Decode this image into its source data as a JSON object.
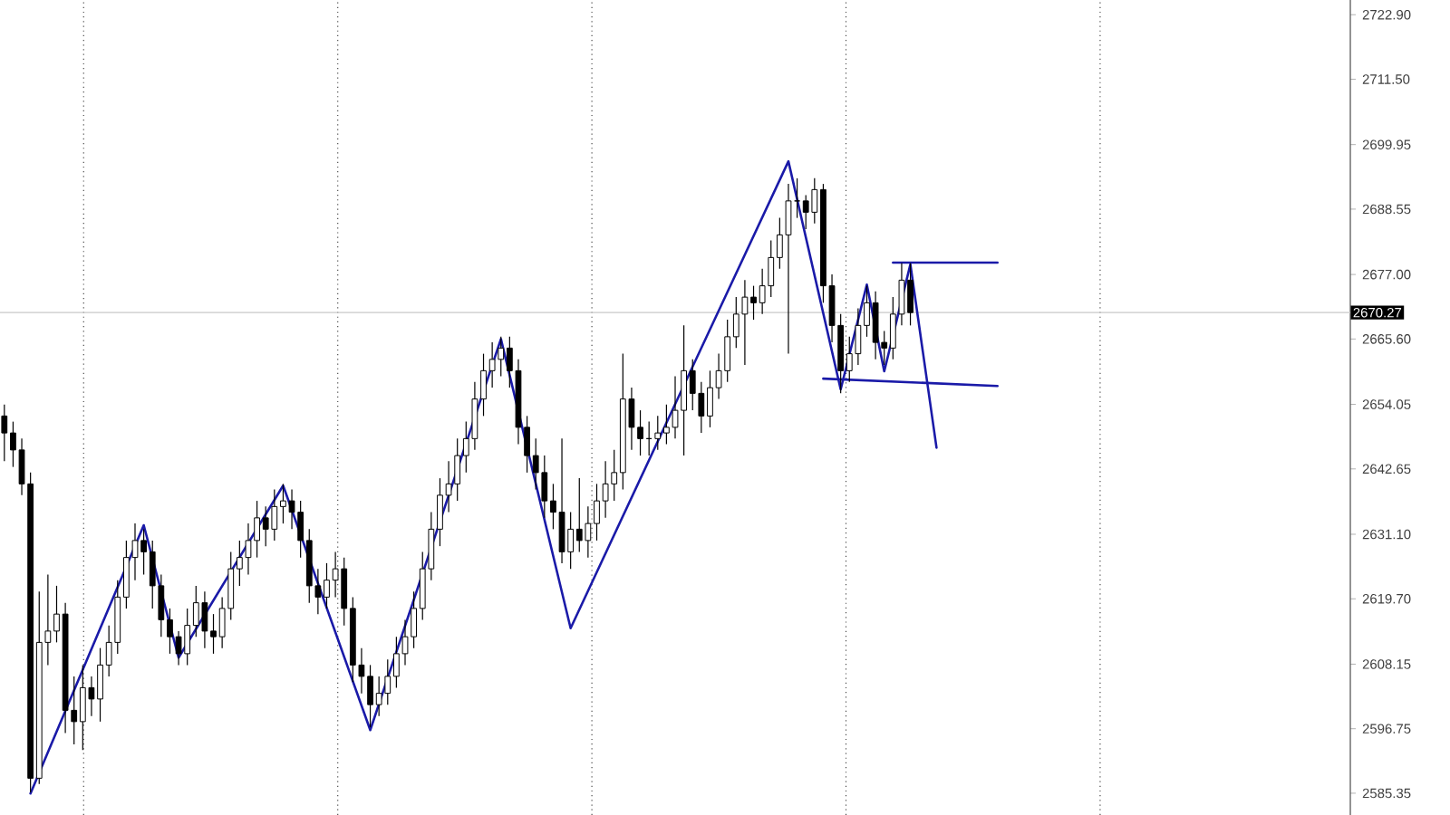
{
  "chart_data": {
    "type": "candlestick",
    "categories": [
      null,
      null,
      null,
      null,
      null,
      null,
      null,
      null,
      null,
      null,
      null,
      null,
      null,
      null,
      null,
      null,
      null,
      null,
      null,
      null,
      null,
      null,
      null,
      null,
      null,
      null,
      null,
      null,
      null,
      null,
      null,
      null,
      null,
      null,
      null,
      null,
      null,
      null,
      null,
      null,
      null,
      null,
      null,
      null,
      null,
      null,
      null,
      null,
      null,
      null,
      null,
      null,
      null,
      null,
      null,
      null,
      null,
      null,
      null,
      null,
      null,
      null,
      null,
      null,
      null,
      null,
      null,
      null,
      null,
      null,
      null,
      null,
      null,
      null,
      null,
      null,
      null,
      null,
      null,
      null,
      null,
      null,
      null,
      null,
      null,
      null,
      null,
      null,
      null,
      null,
      null,
      null,
      null,
      null,
      null,
      null,
      null,
      null,
      null,
      null,
      null,
      null,
      null,
      null,
      null,
      null,
      null,
      null,
      null,
      null,
      null,
      null,
      null,
      null,
      null,
      null,
      null,
      null,
      null,
      null,
      null,
      null,
      null,
      null,
      null,
      null,
      null,
      null,
      null,
      null,
      null,
      null,
      null,
      null,
      null,
      null,
      null,
      null,
      null,
      null,
      null,
      null,
      null,
      null,
      null,
      null,
      null,
      null,
      null,
      null,
      null,
      null,
      null,
      null,
      null
    ],
    "ohlc": [
      [
        2652,
        2654,
        2644,
        2649
      ],
      [
        2649,
        2651,
        2643,
        2646
      ],
      [
        2646,
        2648,
        2638,
        2640
      ],
      [
        2640,
        2642,
        2585.5,
        2588
      ],
      [
        2588,
        2621,
        2587,
        2612
      ],
      [
        2612,
        2624,
        2608,
        2614
      ],
      [
        2614,
        2622,
        2612,
        2617
      ],
      [
        2617,
        2619,
        2596,
        2600
      ],
      [
        2600,
        2606,
        2594,
        2598
      ],
      [
        2598,
        2608,
        2593,
        2604
      ],
      [
        2604,
        2606,
        2599,
        2602
      ],
      [
        2602,
        2611,
        2598,
        2608
      ],
      [
        2608,
        2615,
        2606,
        2612
      ],
      [
        2612,
        2623,
        2610,
        2620
      ],
      [
        2620,
        2630,
        2618,
        2627
      ],
      [
        2627,
        2633,
        2623,
        2630
      ],
      [
        2630,
        2632,
        2624,
        2628
      ],
      [
        2628,
        2630,
        2618,
        2622
      ],
      [
        2622,
        2624,
        2613,
        2616
      ],
      [
        2616,
        2618,
        2610,
        2613
      ],
      [
        2613,
        2614,
        2608,
        2610
      ],
      [
        2610,
        2618,
        2608,
        2615
      ],
      [
        2615,
        2622,
        2613,
        2619
      ],
      [
        2619,
        2621,
        2611,
        2614
      ],
      [
        2614,
        2617,
        2610,
        2613
      ],
      [
        2613,
        2620,
        2611,
        2618
      ],
      [
        2618,
        2628,
        2616,
        2625
      ],
      [
        2625,
        2630,
        2622,
        2627
      ],
      [
        2627,
        2633,
        2624,
        2630
      ],
      [
        2630,
        2637,
        2627,
        2634
      ],
      [
        2634,
        2636,
        2629,
        2632
      ],
      [
        2632,
        2639,
        2630,
        2636
      ],
      [
        2636,
        2640,
        2633,
        2637
      ],
      [
        2637,
        2639,
        2632,
        2635
      ],
      [
        2635,
        2637,
        2627,
        2630
      ],
      [
        2630,
        2632,
        2619,
        2622
      ],
      [
        2622,
        2625,
        2617,
        2620
      ],
      [
        2620,
        2626,
        2618,
        2623
      ],
      [
        2623,
        2628,
        2620,
        2625
      ],
      [
        2625,
        2627,
        2615,
        2618
      ],
      [
        2618,
        2620,
        2605,
        2608
      ],
      [
        2608,
        2611,
        2603,
        2606
      ],
      [
        2606,
        2608,
        2597,
        2601
      ],
      [
        2601,
        2606,
        2599,
        2603
      ],
      [
        2603,
        2609,
        2601,
        2606
      ],
      [
        2606,
        2613,
        2604,
        2610
      ],
      [
        2610,
        2616,
        2608,
        2613
      ],
      [
        2613,
        2621,
        2611,
        2618
      ],
      [
        2618,
        2628,
        2616,
        2625
      ],
      [
        2625,
        2635,
        2623,
        2632
      ],
      [
        2632,
        2641,
        2629,
        2638
      ],
      [
        2638,
        2644,
        2635,
        2640
      ],
      [
        2640,
        2648,
        2637,
        2645
      ],
      [
        2645,
        2651,
        2642,
        2648
      ],
      [
        2648,
        2658,
        2646,
        2655
      ],
      [
        2655,
        2663,
        2652,
        2660
      ],
      [
        2660,
        2665,
        2657,
        2662
      ],
      [
        2662,
        2666,
        2659,
        2664
      ],
      [
        2664,
        2666,
        2657,
        2660
      ],
      [
        2660,
        2662,
        2647,
        2650
      ],
      [
        2650,
        2652,
        2642,
        2645
      ],
      [
        2645,
        2648,
        2639,
        2642
      ],
      [
        2642,
        2645,
        2634,
        2637
      ],
      [
        2637,
        2640,
        2632,
        2635
      ],
      [
        2635,
        2648,
        2626,
        2628
      ],
      [
        2628,
        2635,
        2625,
        2632
      ],
      [
        2632,
        2641,
        2628,
        2630
      ],
      [
        2630,
        2636,
        2627,
        2633
      ],
      [
        2633,
        2640,
        2630,
        2637
      ],
      [
        2637,
        2644,
        2634,
        2640
      ],
      [
        2640,
        2646,
        2637,
        2642
      ],
      [
        2642,
        2663,
        2639,
        2655
      ],
      [
        2655,
        2657,
        2646,
        2650
      ],
      [
        2650,
        2653,
        2645,
        2648
      ],
      [
        2648,
        2651,
        2645,
        2648
      ],
      [
        2648,
        2652,
        2646,
        2649
      ],
      [
        2649,
        2654,
        2647,
        2650
      ],
      [
        2650,
        2659,
        2648,
        2653
      ],
      [
        2653,
        2668,
        2645,
        2660
      ],
      [
        2660,
        2662,
        2653,
        2656
      ],
      [
        2656,
        2658,
        2649,
        2652
      ],
      [
        2652,
        2660,
        2650,
        2657
      ],
      [
        2657,
        2663,
        2655,
        2660
      ],
      [
        2660,
        2669,
        2658,
        2666
      ],
      [
        2666,
        2673,
        2664,
        2670
      ],
      [
        2670,
        2676,
        2661,
        2673
      ],
      [
        2673,
        2675,
        2669,
        2672
      ],
      [
        2672,
        2678,
        2670,
        2675
      ],
      [
        2675,
        2683,
        2673,
        2680
      ],
      [
        2680,
        2687,
        2678,
        2684
      ],
      [
        2684,
        2693,
        2663,
        2690
      ],
      [
        2690,
        2694,
        2687,
        2690
      ],
      [
        2690,
        2691,
        2685,
        2688
      ],
      [
        2688,
        2694,
        2686,
        2692
      ],
      [
        2692,
        2693,
        2672,
        2675
      ],
      [
        2675,
        2677,
        2665,
        2668
      ],
      [
        2668,
        2670,
        2656,
        2660
      ],
      [
        2660,
        2666,
        2658,
        2663
      ],
      [
        2663,
        2671,
        2661,
        2668
      ],
      [
        2668,
        2675,
        2666,
        2672
      ],
      [
        2672,
        2674,
        2662,
        2665
      ],
      [
        2665,
        2667,
        2661,
        2664
      ],
      [
        2664,
        2673,
        2662,
        2670
      ],
      [
        2670,
        2679,
        2668,
        2676
      ],
      [
        2676,
        2679,
        2668,
        2670.27
      ],
      null,
      null,
      null,
      null,
      null,
      null,
      null,
      null,
      null,
      null,
      null,
      null,
      null,
      null,
      null,
      null,
      null,
      null,
      null,
      null,
      null,
      null,
      null,
      null,
      null,
      null,
      null,
      null,
      null,
      null,
      null,
      null,
      null,
      null,
      null,
      null,
      null,
      null,
      null,
      null,
      null,
      null,
      null,
      null,
      null,
      null,
      null,
      null,
      null,
      null
    ],
    "series": [
      {
        "type": "line",
        "color": "#1a1aa8",
        "values": [
          null,
          null,
          null,
          2585.3,
          null,
          null,
          null,
          null,
          null,
          null,
          null,
          null,
          null,
          null,
          null,
          null,
          2632.7,
          null,
          null,
          null,
          2609.3,
          null,
          null,
          null,
          null,
          null,
          null,
          null,
          null,
          null,
          null,
          null,
          2639.7,
          null,
          null,
          null,
          null,
          null,
          null,
          null,
          null,
          null,
          2596.5,
          null,
          null,
          null,
          null,
          null,
          null,
          null,
          null,
          null,
          null,
          null,
          null,
          null,
          null,
          2665.6,
          null,
          null,
          null,
          null,
          null,
          null,
          null,
          2614.5,
          null,
          null,
          null,
          null,
          null,
          null,
          null,
          null,
          null,
          null,
          null,
          null,
          null,
          null,
          null,
          null,
          null,
          null,
          null,
          null,
          null,
          null,
          null,
          null,
          2697,
          null,
          null,
          null,
          null,
          null,
          2656.7,
          null,
          null,
          2675.2,
          null,
          2659.9,
          null,
          null,
          2678.8,
          null,
          null,
          2646.4,
          null,
          null,
          null,
          null,
          null,
          null,
          null,
          null,
          null,
          null,
          null,
          null,
          null,
          null,
          null,
          null,
          null,
          null,
          null,
          null,
          null,
          null,
          null,
          null,
          null,
          null,
          null,
          null,
          null,
          null,
          null,
          null,
          null,
          null,
          null,
          null,
          null,
          null,
          null,
          null,
          null,
          null,
          null,
          null,
          null,
          null,
          null
        ]
      },
      {
        "type": "line",
        "color": "#1a1aa8",
        "values": [
          null,
          null,
          null,
          null,
          null,
          null,
          null,
          null,
          null,
          null,
          null,
          null,
          null,
          null,
          null,
          null,
          null,
          null,
          null,
          null,
          null,
          null,
          null,
          null,
          null,
          null,
          null,
          null,
          null,
          null,
          null,
          null,
          null,
          null,
          null,
          null,
          null,
          null,
          null,
          null,
          null,
          null,
          null,
          null,
          null,
          null,
          null,
          null,
          null,
          null,
          null,
          null,
          null,
          null,
          null,
          null,
          null,
          null,
          null,
          null,
          null,
          null,
          null,
          null,
          null,
          null,
          null,
          null,
          null,
          null,
          null,
          null,
          null,
          null,
          null,
          null,
          null,
          null,
          null,
          null,
          null,
          null,
          null,
          null,
          null,
          null,
          null,
          null,
          null,
          null,
          null,
          null,
          null,
          null,
          null,
          null,
          null,
          null,
          null,
          null,
          null,
          null,
          2679.1,
          null,
          null,
          null,
          null,
          null,
          null,
          null,
          null,
          null,
          null,
          null,
          2679.1,
          null,
          null,
          null,
          null,
          null,
          null,
          null,
          null,
          null,
          null,
          null,
          null,
          null,
          null,
          null,
          null,
          null,
          null,
          null,
          null,
          null,
          null,
          null,
          null,
          null,
          null,
          null,
          null,
          null,
          null,
          null,
          null,
          null,
          null,
          null,
          null,
          null,
          null,
          null,
          null
        ]
      },
      {
        "type": "line",
        "color": "#1a1aa8",
        "values": [
          null,
          null,
          null,
          null,
          null,
          null,
          null,
          null,
          null,
          null,
          null,
          null,
          null,
          null,
          null,
          null,
          null,
          null,
          null,
          null,
          null,
          null,
          null,
          null,
          null,
          null,
          null,
          null,
          null,
          null,
          null,
          null,
          null,
          null,
          null,
          null,
          null,
          null,
          null,
          null,
          null,
          null,
          null,
          null,
          null,
          null,
          null,
          null,
          null,
          null,
          null,
          null,
          null,
          null,
          null,
          null,
          null,
          null,
          null,
          null,
          null,
          null,
          null,
          null,
          null,
          null,
          null,
          null,
          null,
          null,
          null,
          null,
          null,
          null,
          null,
          null,
          null,
          null,
          null,
          null,
          null,
          null,
          null,
          null,
          null,
          null,
          null,
          null,
          null,
          null,
          null,
          null,
          null,
          null,
          2658.6,
          null,
          null,
          null,
          null,
          null,
          null,
          null,
          null,
          null,
          null,
          null,
          null,
          null,
          null,
          null,
          null,
          null,
          null,
          null,
          2657.3,
          null,
          null,
          null,
          null,
          null,
          null,
          null,
          null,
          null,
          null,
          null,
          null,
          null,
          null,
          null,
          null,
          null,
          null,
          null,
          null,
          null,
          null,
          null,
          null,
          null,
          null,
          null,
          null,
          null,
          null,
          null,
          null,
          null,
          null,
          null,
          null,
          null,
          null,
          null,
          null
        ]
      }
    ],
    "ylim": [
      2581.5,
      2725.5
    ],
    "yticks": [
      {
        "value": 2585.35,
        "label": "2585.35"
      },
      {
        "value": 2596.75,
        "label": "2596.75"
      },
      {
        "value": 2608.15,
        "label": "2608.15"
      },
      {
        "value": 2619.7,
        "label": "2619.70"
      },
      {
        "value": 2631.1,
        "label": "2631.10"
      },
      {
        "value": 2642.65,
        "label": "2642.65"
      },
      {
        "value": 2654.05,
        "label": "2654.05"
      },
      {
        "value": 2665.6,
        "label": "2665.60"
      },
      {
        "value": 2677,
        "label": "2677.00"
      },
      {
        "value": 2688.55,
        "label": "2688.55"
      },
      {
        "value": 2699.95,
        "label": "2699.95"
      },
      {
        "value": 2711.5,
        "label": "2711.50"
      },
      {
        "value": 2722.9,
        "label": "2722.90"
      }
    ],
    "ref_lines": [
      {
        "axis": "y",
        "value": 2670.27,
        "label": "2670.27",
        "color": "#c8c8c8"
      }
    ],
    "tick_labels": "y"
  }
}
